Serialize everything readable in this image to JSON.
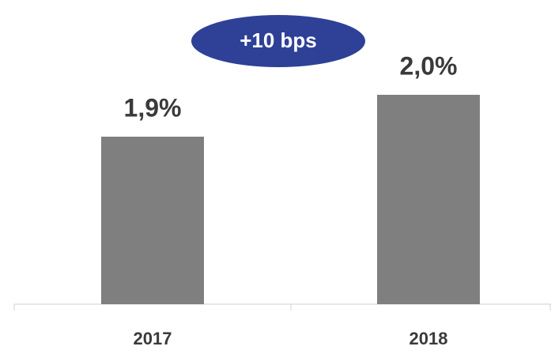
{
  "chart_data": {
    "type": "bar",
    "annotation": "+10 bps",
    "categories": [
      "2017",
      "2018"
    ],
    "values": [
      1.9,
      2.0
    ],
    "value_labels": [
      "1,9%",
      "2,0%"
    ],
    "color": "#7f7f7f",
    "annotation_color": "#2e4196",
    "ylim": [
      1.5,
      2.1
    ]
  }
}
